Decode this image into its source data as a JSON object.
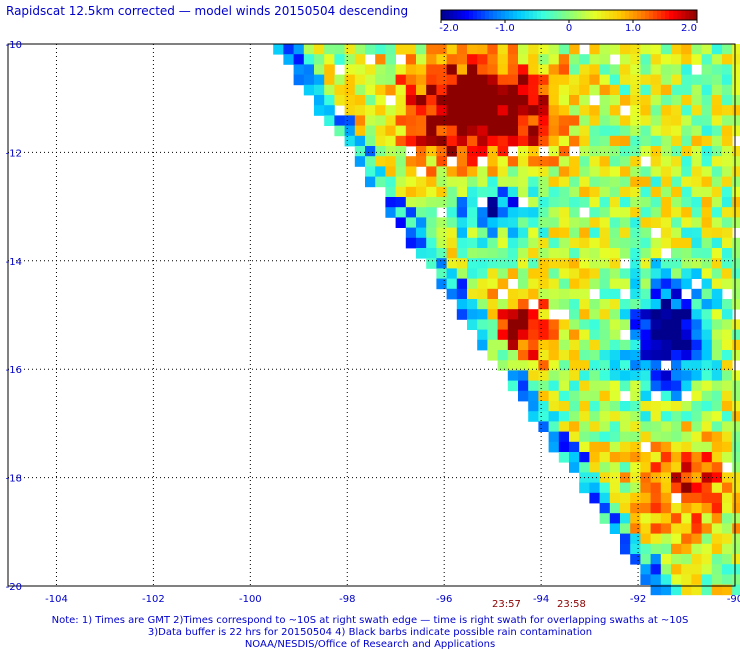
{
  "title": "Rapidscat 12.5km corrected — model winds 20150504 descending",
  "colorbar": {
    "tick_labels": [
      "-2.0",
      "-1.0",
      "0",
      "1.0",
      "2.0"
    ],
    "colors": [
      "#00008b",
      "#0000ff",
      "#0080ff",
      "#00e5ff",
      "#80ff80",
      "#ffff00",
      "#ff8000",
      "#ff0000",
      "#8b0000"
    ]
  },
  "map": {
    "lon_labels": [
      "-104",
      "-102",
      "-100",
      "-98",
      "-96",
      "-94",
      "-92",
      "-90"
    ],
    "lat_labels": [
      "-10",
      "-12",
      "-14",
      "-16",
      "-18",
      "-20"
    ],
    "lon_range": [
      -105,
      -90
    ],
    "lat_range": [
      -20,
      -10
    ],
    "grid": "dotted"
  },
  "pass_times": [
    "23:57",
    "23:58"
  ],
  "notes": [
    "Note: 1) Times are GMT 2)Times correspond to ~10S at right swath edge — time is right swath for overlapping swaths at ~10S",
    "3)Data buffer is 22 hrs for 20150504 4) Black barbs indicate possible rain contamination",
    "NOAA/NESDIS/Office of Research and Applications"
  ]
}
